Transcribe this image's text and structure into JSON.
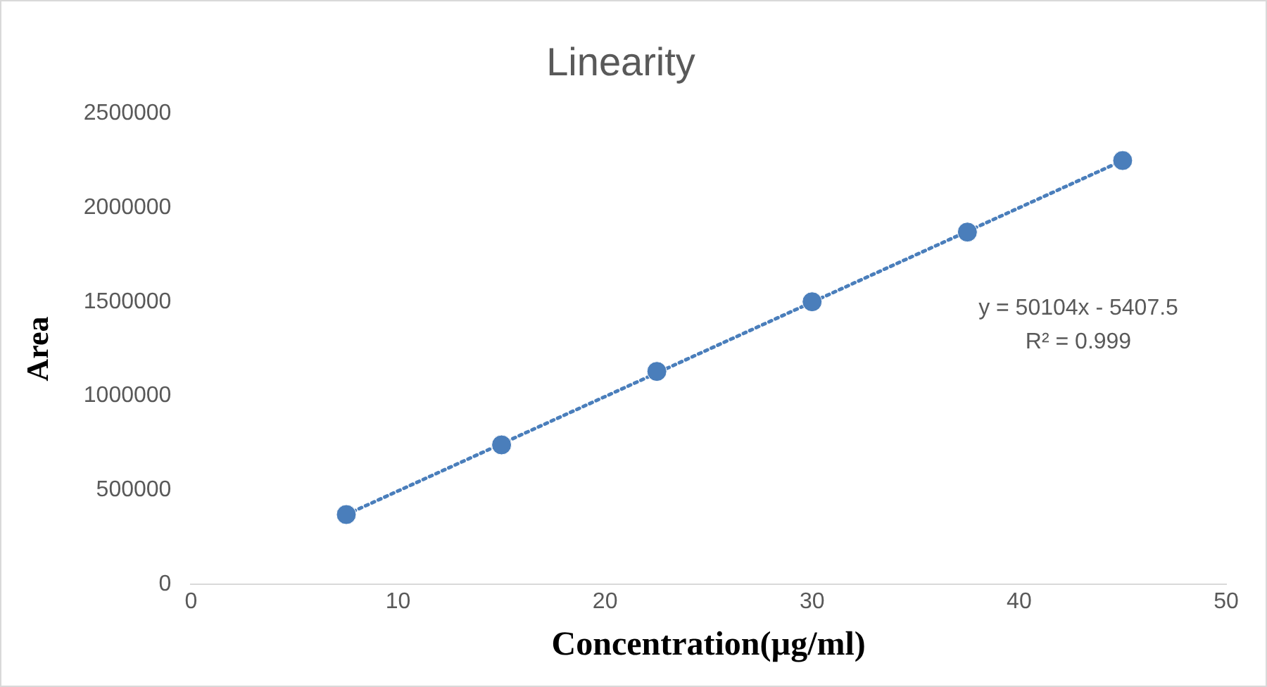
{
  "chart_data": {
    "type": "scatter",
    "title": "Linearity",
    "xlabel": "Concentration(µg/ml)",
    "ylabel": "Area",
    "x": [
      7.5,
      15,
      22.5,
      30,
      37.5,
      45
    ],
    "series": [
      {
        "type": "scatter",
        "color": "#4a7ebb",
        "values": [
          370000,
          740000,
          1130000,
          1500000,
          1870000,
          2250000
        ],
        "marker": "circle"
      },
      {
        "type": "line",
        "color": "#4a7ebb",
        "x": [
          7.5,
          45
        ],
        "values": [
          370000,
          2250000
        ],
        "line_style": "dotted",
        "marker": "none"
      }
    ],
    "xlim": [
      0,
      50
    ],
    "xticks": [
      0,
      10,
      20,
      30,
      40,
      50
    ],
    "ylim": [
      0,
      2500000
    ],
    "yticks": [
      0,
      500000,
      1000000,
      1500000,
      2000000,
      2500000
    ],
    "grid": false,
    "legend": false,
    "annotations": [
      "y = 50104x - 5407.5",
      "R² = 0.999"
    ]
  }
}
